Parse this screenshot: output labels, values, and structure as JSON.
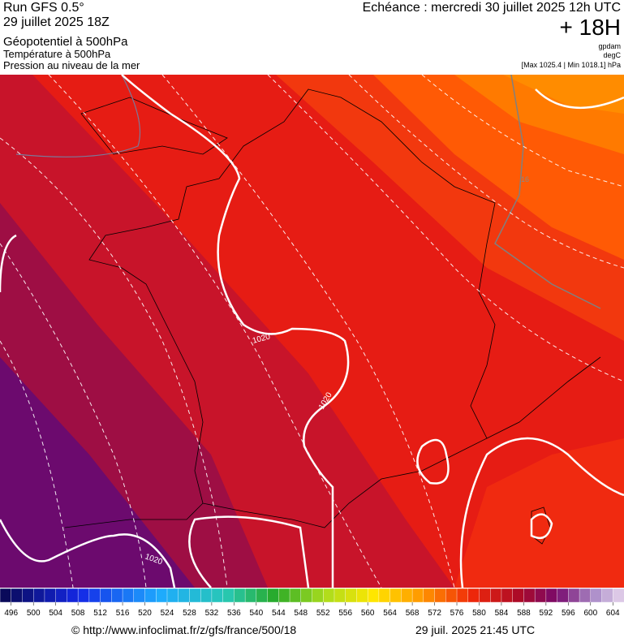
{
  "header": {
    "run": "Run GFS 0.5°",
    "run_date": "29 juillet 2025 18Z",
    "field_1": "Géopotentiel à 500hPa",
    "field_2": "Température à 500hPa",
    "field_3": "Pression au niveau de la mer",
    "forecast_time": "Echéance : mercredi 30 juillet 2025 12h UTC",
    "lead": "+ 18H",
    "unit_1": "gpdam",
    "unit_2": "degC",
    "pressure_range": "[Max 1025.4 | Min 1018.1] hPa"
  },
  "map": {
    "isobar_labels": [
      "1020",
      "1020",
      "1020"
    ],
    "isotherm_label": "16"
  },
  "colorbar": {
    "ticks": [
      496,
      500,
      504,
      508,
      512,
      516,
      520,
      524,
      528,
      532,
      536,
      540,
      544,
      548,
      552,
      556,
      560,
      564,
      568,
      572,
      576,
      580,
      584,
      588,
      592,
      596,
      600,
      604
    ]
  },
  "footer": {
    "source": "© http://www.infoclimat.fr/z/gfs/france/500/18",
    "timestamp": "29 juil. 2025 21:45 UTC"
  }
}
